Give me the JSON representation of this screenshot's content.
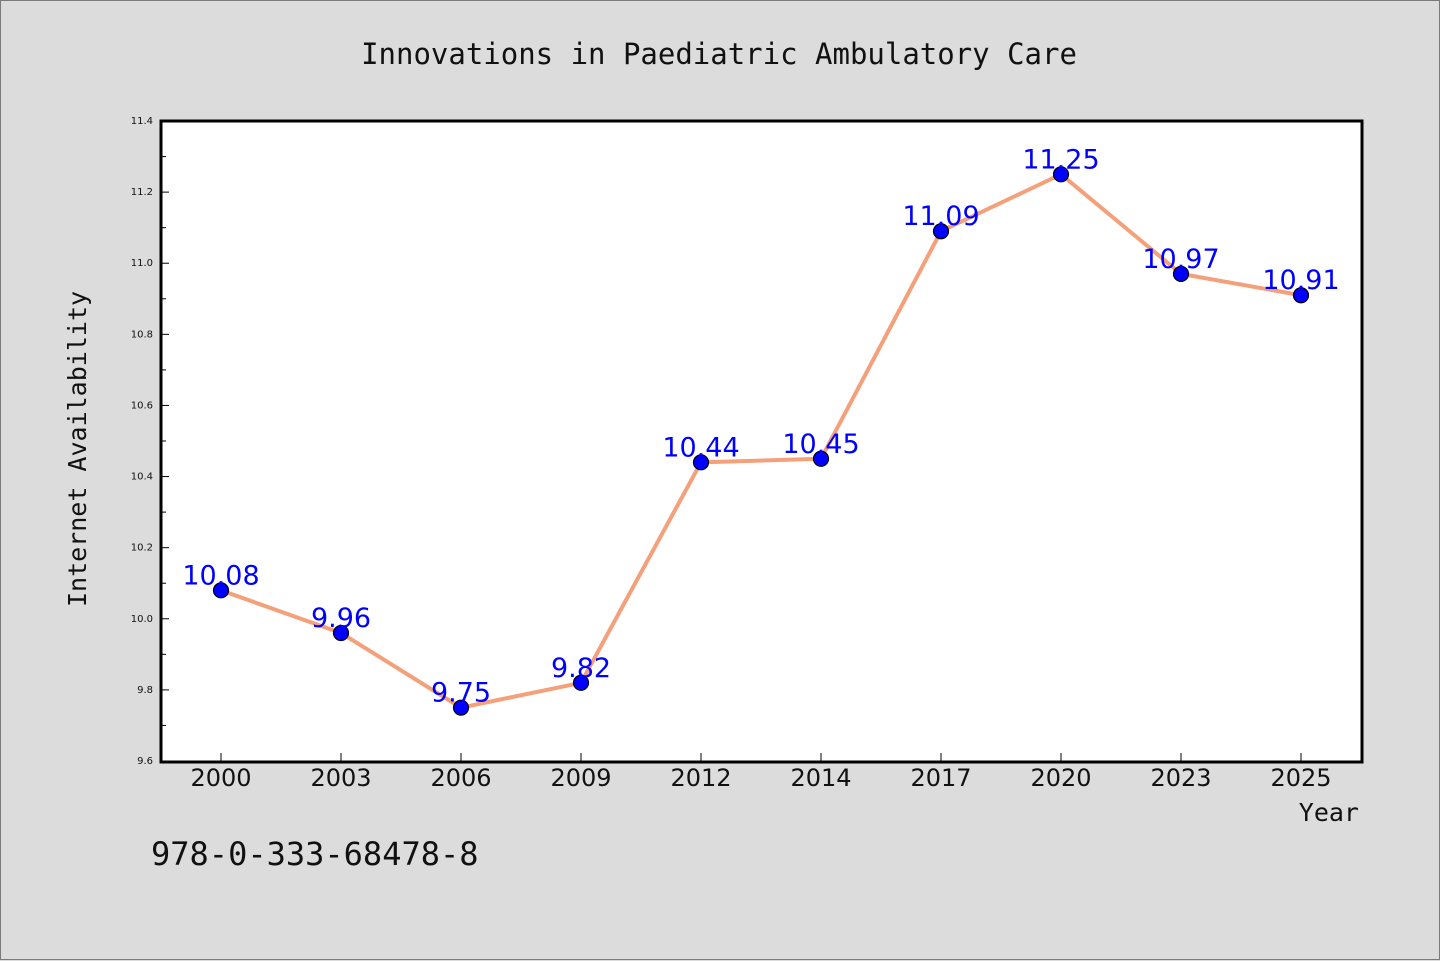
{
  "chart_data": {
    "type": "line",
    "title": "Innovations in Paediatric Ambulatory Care",
    "xlabel": "Year",
    "ylabel": "Internet Availability",
    "categories": [
      "2000",
      "2003",
      "2006",
      "2009",
      "2012",
      "2014",
      "2017",
      "2020",
      "2023",
      "2025"
    ],
    "series": [
      {
        "values": [
          10.08,
          9.96,
          9.75,
          9.82,
          10.44,
          10.45,
          11.09,
          11.25,
          10.97,
          10.91
        ]
      }
    ],
    "ylim": [
      9.6,
      11.4
    ],
    "yticks": [
      "9.6",
      "9.8",
      "10.0",
      "10.2",
      "10.4",
      "10.6",
      "10.8",
      "11.0",
      "11.2",
      "11.4"
    ],
    "data_labels": [
      "10.08",
      "9.96",
      "9.75",
      "9.82",
      "10.44",
      "10.45",
      "11.09",
      "11.25",
      "10.97",
      "10.91"
    ],
    "grid": false,
    "colors": {
      "line": "#f4a07a",
      "marker": "#0000ff",
      "label": "#0000ff"
    }
  },
  "footer": {
    "isbn": "978-0-333-68478-8"
  }
}
